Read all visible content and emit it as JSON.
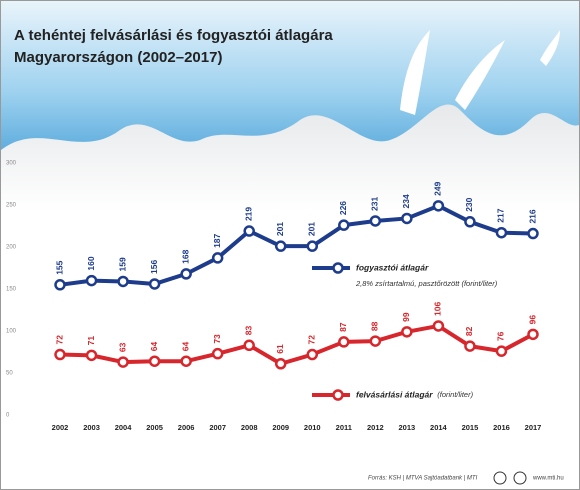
{
  "chart_data": {
    "type": "line",
    "title": [
      "A tehéntej felvásárlási és fogyasztói átlagára",
      "Magyarországon (2002–2017)"
    ],
    "categories": [
      "2002",
      "2003",
      "2004",
      "2005",
      "2006",
      "2007",
      "2008",
      "2009",
      "2010",
      "2011",
      "2012",
      "2013",
      "2014",
      "2015",
      "2016",
      "2017"
    ],
    "series": [
      {
        "name": "fogyasztói átlagár",
        "note": "2,8% zsírtartalmú, pasztőrözött (forint/liter)",
        "color": "#1e3c8c",
        "values": [
          155,
          160,
          159,
          156,
          168,
          187,
          219,
          201,
          201,
          226,
          231,
          234,
          249,
          230,
          217,
          216
        ]
      },
      {
        "name": "felvásárlási átlagár",
        "note": "(forint/liter)",
        "color": "#d7262c",
        "values": [
          72,
          71,
          63,
          64,
          64,
          73,
          83,
          61,
          72,
          87,
          88,
          99,
          106,
          82,
          76,
          96
        ]
      }
    ],
    "ylim": [
      0,
      300
    ],
    "yticks": [
      0,
      50,
      100,
      150,
      200,
      250,
      300
    ],
    "grid": false,
    "source": "Forrás: KSH | MTVA Sajtóadatbank | MTI",
    "website": "www.mti.hu"
  }
}
